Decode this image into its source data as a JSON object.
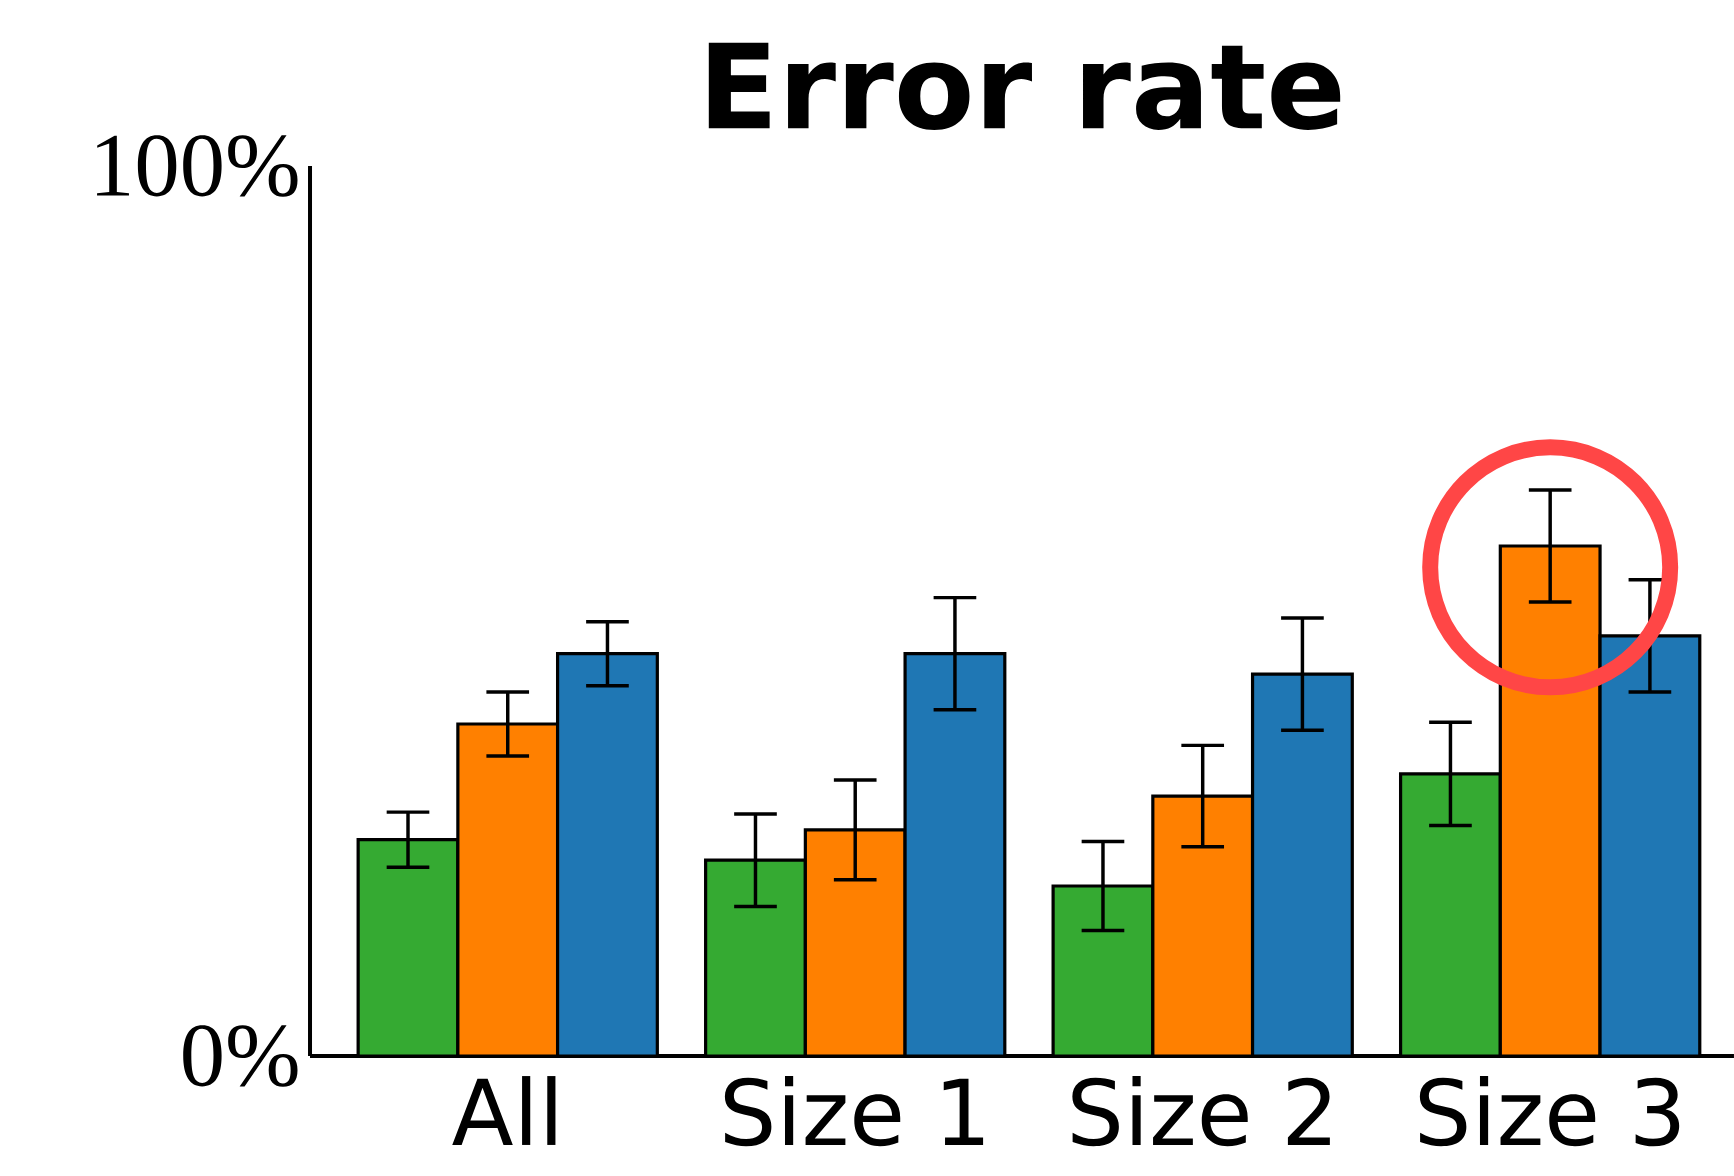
{
  "chart_data": {
    "type": "bar",
    "title": "Error rate",
    "categories": [
      "All",
      "Size 1",
      "Size 2",
      "Size 3"
    ],
    "series": [
      {
        "color": "#35aa32",
        "values": [
          24.3,
          22.0,
          19.1,
          31.7
        ],
        "errors": [
          3.1,
          5.2,
          5.0,
          5.8
        ]
      },
      {
        "color": "#ff8000",
        "values": [
          37.3,
          25.4,
          29.2,
          57.3
        ],
        "errors": [
          3.6,
          5.6,
          5.7,
          6.3
        ]
      },
      {
        "color": "#1f77b4",
        "values": [
          45.2,
          45.2,
          42.9,
          47.2
        ],
        "errors": [
          3.6,
          6.3,
          6.3,
          6.3
        ]
      }
    ],
    "ylim": [
      0,
      100
    ],
    "yticks": [
      {
        "value": 0,
        "label": "0%"
      },
      {
        "value": 100,
        "label": "100%"
      }
    ],
    "grid": false
  }
}
